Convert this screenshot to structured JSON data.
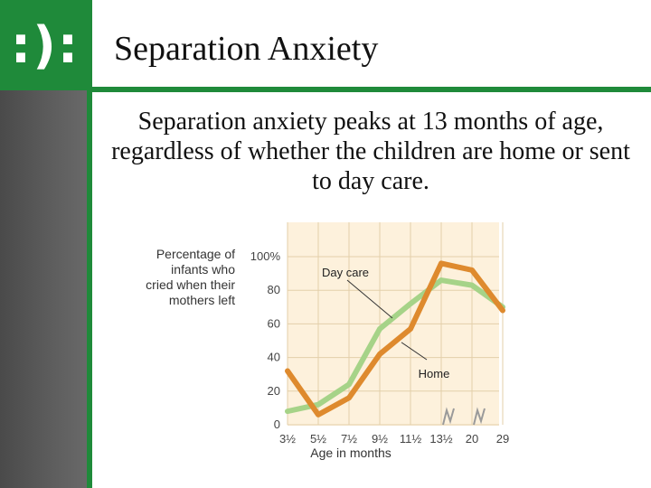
{
  "logo": {
    "text": ":):"
  },
  "slide": {
    "title": "Separation Anxiety",
    "body": "Separation anxiety peaks at 13 months of age, regardless of whether the children are home or sent to day care."
  },
  "colors": {
    "accent_green": "#1f8a3a",
    "home_series": "#de8a2e",
    "day_care_series": "#a6d388",
    "plot_background": "#fdf1dc"
  },
  "chart_data": {
    "type": "line",
    "ylabel": "Percentage of infants who cried when their mothers left",
    "xlabel": "Age in months",
    "x_tick_labels": [
      "3½",
      "5½",
      "7½",
      "9½",
      "11½",
      "13½",
      "20",
      "29"
    ],
    "y_tick_labels": [
      "100%",
      "80",
      "60",
      "40",
      "20",
      "0"
    ],
    "ylim": [
      0,
      100
    ],
    "axis_break": "between 13½ and 20",
    "series": [
      {
        "name": "Day care",
        "values": [
          8,
          12,
          24,
          57,
          72,
          86,
          83,
          70
        ]
      },
      {
        "name": "Home",
        "values": [
          32,
          6,
          16,
          42,
          57,
          96,
          92,
          68
        ]
      }
    ]
  }
}
